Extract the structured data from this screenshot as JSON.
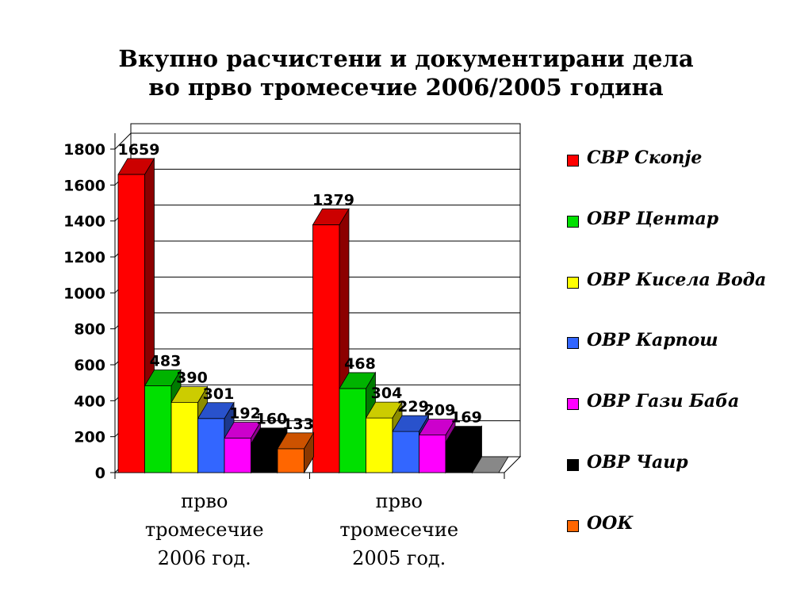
{
  "title_lines": [
    "Вкупно расчистени и документирани дела",
    "во прво тромесечие 2006/2005 година"
  ],
  "chart_data": {
    "type": "bar",
    "categories": [
      [
        "прво",
        "тромесечие",
        "2006 год."
      ],
      [
        "прво",
        "тромесечие",
        "2005 год."
      ]
    ],
    "ylim": [
      0,
      1800
    ],
    "y_ticks": [
      "0",
      "200",
      "400",
      "600",
      "800",
      "1000",
      "1200",
      "1400",
      "1600",
      "1800"
    ],
    "grid": true,
    "legend_position": "right",
    "series": [
      {
        "name": "СВР Скопје",
        "color": "#ff0000",
        "values": [
          1659,
          1379
        ],
        "labels": [
          "1659",
          "1379"
        ]
      },
      {
        "name": "ОВР Центар",
        "color": "#00e000",
        "values": [
          483,
          468
        ],
        "labels": [
          "483",
          "468"
        ]
      },
      {
        "name": "ОВР Кисела Вода",
        "color": "#ffff00",
        "values": [
          390,
          304
        ],
        "labels": [
          "390",
          "304"
        ]
      },
      {
        "name": "ОВР Карпош",
        "color": "#3366ff",
        "values": [
          301,
          229
        ],
        "labels": [
          "301",
          "229"
        ]
      },
      {
        "name": "ОВР Гази Баба",
        "color": "#ff00ff",
        "values": [
          192,
          209
        ],
        "labels": [
          "192",
          "209"
        ]
      },
      {
        "name": "ОВР Чаир",
        "color": "#000000",
        "values": [
          160,
          169
        ],
        "labels": [
          "160",
          "169"
        ]
      },
      {
        "name": "ООК",
        "color": "#ff6600",
        "values": [
          133,
          0
        ],
        "labels": [
          "133",
          ""
        ]
      }
    ]
  }
}
